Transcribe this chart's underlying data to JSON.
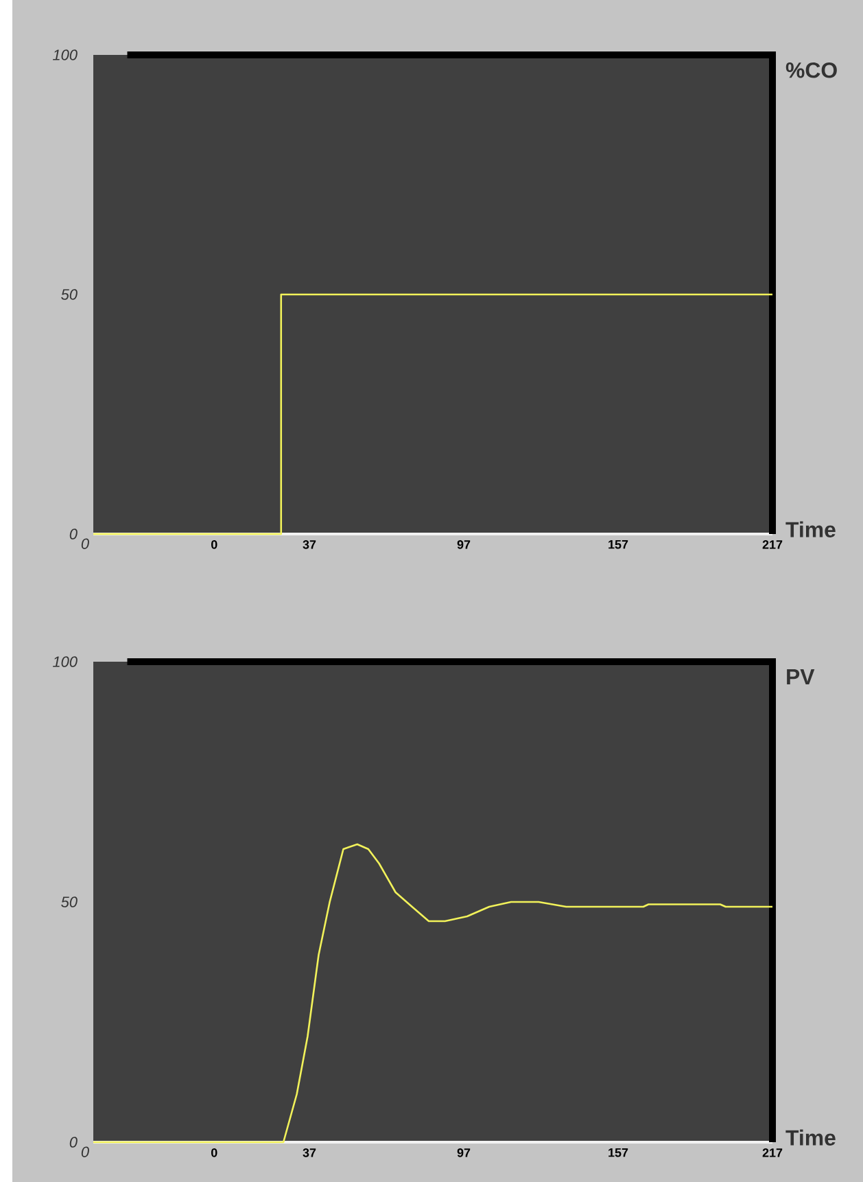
{
  "chart_data": [
    {
      "type": "step",
      "ylabel": "%CO",
      "xlabel": "Time",
      "xlim": [
        -47,
        217
      ],
      "ylim": [
        0,
        100
      ],
      "xticks": [
        0,
        37,
        97,
        157,
        217
      ],
      "yticks": [
        0,
        50,
        100
      ],
      "annotations": [
        "0"
      ],
      "series": [
        {
          "color": "#f2f25a",
          "x": [
            -47,
            26,
            217
          ],
          "values": [
            0,
            50,
            50
          ]
        }
      ]
    },
    {
      "type": "line",
      "ylabel": "PV",
      "xlabel": "Time",
      "xlim": [
        -47,
        217
      ],
      "ylim": [
        0,
        100
      ],
      "xticks": [
        0,
        37,
        97,
        157,
        217
      ],
      "yticks": [
        0,
        50,
        100
      ],
      "annotations": [
        "0"
      ],
      "series": [
        {
          "color": "#f2f25a",
          "x": [
            -47,
            26.9,
            32.1,
            36.3,
            40.6,
            44.9,
            50.2,
            55.6,
            59.9,
            64.1,
            70.5,
            76.9,
            83.4,
            89.7,
            98.3,
            106.9,
            115.4,
            126.1,
            136.8,
            166.8,
            168.8,
            196.7,
            198.8,
            217
          ],
          "values": [
            0,
            0,
            10,
            22,
            39,
            50,
            61,
            62,
            61,
            58,
            52,
            49,
            46,
            46,
            47,
            49,
            50,
            50,
            49,
            49,
            49.5,
            49.5,
            49,
            49
          ]
        }
      ]
    }
  ]
}
